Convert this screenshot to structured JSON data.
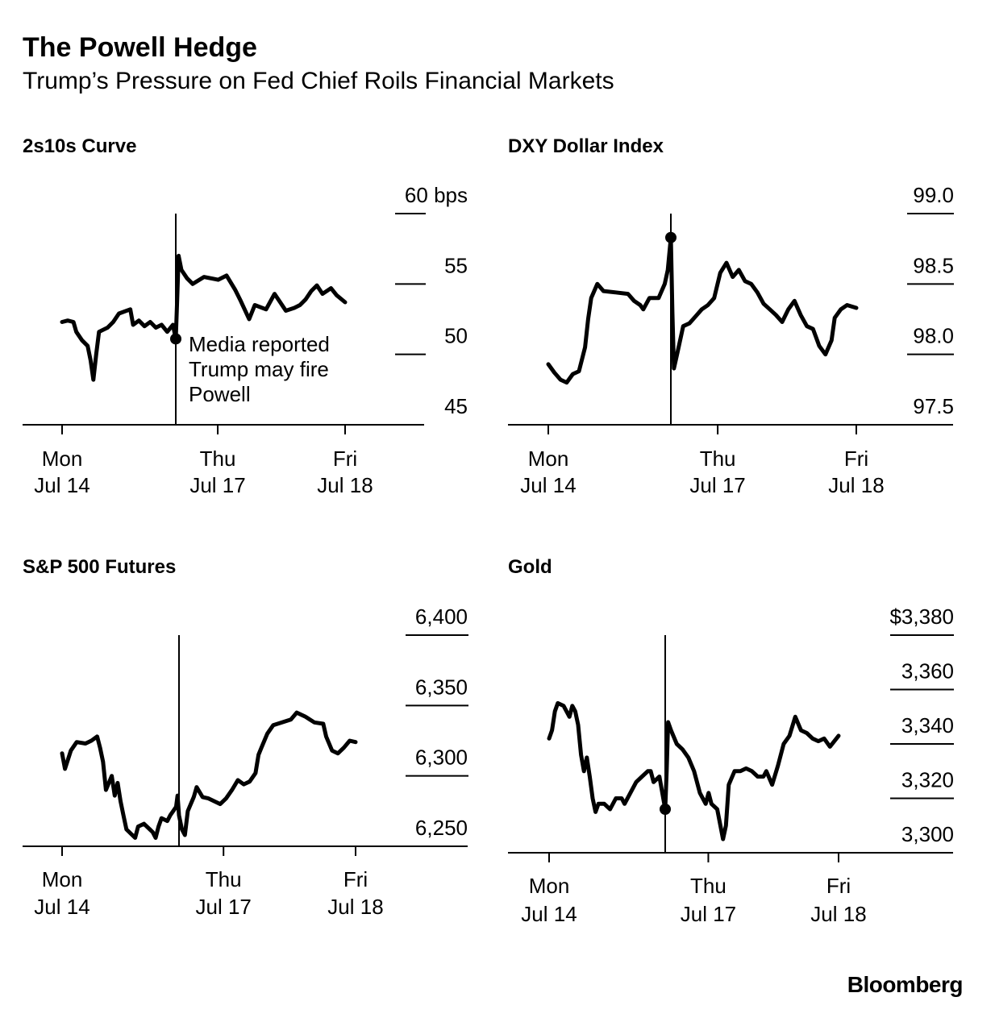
{
  "title": "The Powell Hedge",
  "subtitle": "Trump’s Pressure on Fed Chief Roils Financial Markets",
  "source": "Bloomberg",
  "chart_data": [
    {
      "type": "line",
      "title": "2s10s Curve",
      "x_ticks": [
        {
          "pos": 0,
          "label": [
            "Mon",
            "Jul 14"
          ]
        },
        {
          "pos": 0.55,
          "label": [
            "Thu",
            "Jul 17"
          ]
        },
        {
          "pos": 1,
          "label": [
            "Fri",
            "Jul 18"
          ]
        }
      ],
      "event_x": 0.4,
      "ylim": [
        45,
        60
      ],
      "y_ticks": [
        {
          "value": 60,
          "label": "60 bps"
        },
        {
          "value": 55,
          "label": "55"
        },
        {
          "value": 50,
          "label": "50"
        },
        {
          "value": 45,
          "label": "45"
        }
      ],
      "marker": {
        "x": 0.4,
        "y": 51.1
      },
      "annotation": [
        "Media reported",
        "Trump may fire",
        "Powell"
      ],
      "series": [
        {
          "values": [
            [
              0,
              52.3
            ],
            [
              0.02,
              52.4
            ],
            [
              0.04,
              52.3
            ],
            [
              0.05,
              51.6
            ],
            [
              0.07,
              51.0
            ],
            [
              0.09,
              50.6
            ],
            [
              0.1,
              49.6
            ],
            [
              0.11,
              48.2
            ],
            [
              0.12,
              50.0
            ],
            [
              0.13,
              51.6
            ],
            [
              0.16,
              51.9
            ],
            [
              0.18,
              52.3
            ],
            [
              0.2,
              52.9
            ],
            [
              0.24,
              53.2
            ],
            [
              0.25,
              52.1
            ],
            [
              0.27,
              52.4
            ],
            [
              0.29,
              52.0
            ],
            [
              0.31,
              52.3
            ],
            [
              0.33,
              51.9
            ],
            [
              0.35,
              52.1
            ],
            [
              0.37,
              51.6
            ],
            [
              0.39,
              52.1
            ],
            [
              0.4,
              51.1
            ],
            [
              0.405,
              54.0
            ],
            [
              0.41,
              57.0
            ],
            [
              0.42,
              56.0
            ],
            [
              0.44,
              55.4
            ],
            [
              0.46,
              55.0
            ],
            [
              0.5,
              55.5
            ],
            [
              0.55,
              55.3
            ],
            [
              0.58,
              55.6
            ],
            [
              0.61,
              54.6
            ],
            [
              0.63,
              53.8
            ],
            [
              0.66,
              52.5
            ],
            [
              0.68,
              53.5
            ],
            [
              0.72,
              53.2
            ],
            [
              0.75,
              54.3
            ],
            [
              0.77,
              53.7
            ],
            [
              0.79,
              53.1
            ],
            [
              0.82,
              53.3
            ],
            [
              0.84,
              53.5
            ],
            [
              0.86,
              53.9
            ],
            [
              0.88,
              54.5
            ],
            [
              0.9,
              54.9
            ],
            [
              0.92,
              54.3
            ],
            [
              0.95,
              54.7
            ],
            [
              0.97,
              54.2
            ],
            [
              1,
              53.7
            ]
          ]
        }
      ]
    },
    {
      "type": "line",
      "title": "DXY Dollar Index",
      "x_ticks": [
        {
          "pos": 0,
          "label": [
            "Mon",
            "Jul 14"
          ]
        },
        {
          "pos": 0.55,
          "label": [
            "Thu",
            "Jul 17"
          ]
        },
        {
          "pos": 1,
          "label": [
            "Fri",
            "Jul 18"
          ]
        }
      ],
      "event_x": 0.4,
      "ylim": [
        97.5,
        99.0
      ],
      "y_ticks": [
        {
          "value": 99.0,
          "label": "99.0"
        },
        {
          "value": 98.5,
          "label": "98.5"
        },
        {
          "value": 98.0,
          "label": "98.0"
        },
        {
          "value": 97.5,
          "label": "97.5"
        }
      ],
      "marker": {
        "x": 0.4,
        "y": 98.83
      },
      "series": [
        {
          "values": [
            [
              0,
              97.93
            ],
            [
              0.02,
              97.87
            ],
            [
              0.04,
              97.82
            ],
            [
              0.06,
              97.8
            ],
            [
              0.08,
              97.86
            ],
            [
              0.1,
              97.88
            ],
            [
              0.12,
              98.05
            ],
            [
              0.13,
              98.25
            ],
            [
              0.14,
              98.4
            ],
            [
              0.16,
              98.5
            ],
            [
              0.18,
              98.45
            ],
            [
              0.22,
              98.44
            ],
            [
              0.26,
              98.43
            ],
            [
              0.28,
              98.38
            ],
            [
              0.3,
              98.35
            ],
            [
              0.31,
              98.32
            ],
            [
              0.33,
              98.4
            ],
            [
              0.36,
              98.4
            ],
            [
              0.38,
              98.5
            ],
            [
              0.39,
              98.6
            ],
            [
              0.4,
              98.83
            ],
            [
              0.405,
              98.3
            ],
            [
              0.41,
              97.9
            ],
            [
              0.42,
              98.0
            ],
            [
              0.43,
              98.1
            ],
            [
              0.44,
              98.2
            ],
            [
              0.46,
              98.22
            ],
            [
              0.48,
              98.27
            ],
            [
              0.5,
              98.32
            ],
            [
              0.52,
              98.35
            ],
            [
              0.54,
              98.4
            ],
            [
              0.56,
              98.58
            ],
            [
              0.58,
              98.65
            ],
            [
              0.6,
              98.55
            ],
            [
              0.62,
              98.6
            ],
            [
              0.64,
              98.52
            ],
            [
              0.66,
              98.5
            ],
            [
              0.68,
              98.44
            ],
            [
              0.7,
              98.36
            ],
            [
              0.72,
              98.32
            ],
            [
              0.74,
              98.28
            ],
            [
              0.76,
              98.23
            ],
            [
              0.78,
              98.32
            ],
            [
              0.8,
              98.38
            ],
            [
              0.82,
              98.28
            ],
            [
              0.84,
              98.2
            ],
            [
              0.86,
              98.18
            ],
            [
              0.88,
              98.06
            ],
            [
              0.9,
              98.0
            ],
            [
              0.92,
              98.1
            ],
            [
              0.93,
              98.26
            ],
            [
              0.95,
              98.32
            ],
            [
              0.97,
              98.35
            ],
            [
              1,
              98.33
            ]
          ]
        }
      ]
    },
    {
      "type": "line",
      "title": "S&P 500 Futures",
      "x_ticks": [
        {
          "pos": 0,
          "label": [
            "Mon",
            "Jul 14"
          ]
        },
        {
          "pos": 0.55,
          "label": [
            "Thu",
            "Jul 17"
          ]
        },
        {
          "pos": 1,
          "label": [
            "Fri",
            "Jul 18"
          ]
        }
      ],
      "event_x": 0.4,
      "ylim": [
        6250,
        6400
      ],
      "y_ticks": [
        {
          "value": 6400,
          "label": "6,400"
        },
        {
          "value": 6350,
          "label": "6,350"
        },
        {
          "value": 6300,
          "label": "6,300"
        },
        {
          "value": 6250,
          "label": "6,250"
        }
      ],
      "series": [
        {
          "values": [
            [
              0,
              6316
            ],
            [
              0.01,
              6305
            ],
            [
              0.03,
              6318
            ],
            [
              0.05,
              6324
            ],
            [
              0.08,
              6323
            ],
            [
              0.1,
              6325
            ],
            [
              0.12,
              6328
            ],
            [
              0.13,
              6320
            ],
            [
              0.14,
              6310
            ],
            [
              0.15,
              6290
            ],
            [
              0.17,
              6300
            ],
            [
              0.18,
              6286
            ],
            [
              0.19,
              6295
            ],
            [
              0.2,
              6282
            ],
            [
              0.21,
              6272
            ],
            [
              0.22,
              6262
            ],
            [
              0.24,
              6258
            ],
            [
              0.25,
              6256
            ],
            [
              0.26,
              6264
            ],
            [
              0.28,
              6266
            ],
            [
              0.3,
              6262
            ],
            [
              0.31,
              6260
            ],
            [
              0.32,
              6256
            ],
            [
              0.33,
              6264
            ],
            [
              0.34,
              6270
            ],
            [
              0.36,
              6268
            ],
            [
              0.37,
              6272
            ],
            [
              0.38,
              6275
            ],
            [
              0.39,
              6278
            ],
            [
              0.395,
              6286
            ],
            [
              0.4,
              6272
            ],
            [
              0.41,
              6262
            ],
            [
              0.42,
              6258
            ],
            [
              0.43,
              6275
            ],
            [
              0.45,
              6285
            ],
            [
              0.46,
              6292
            ],
            [
              0.48,
              6285
            ],
            [
              0.5,
              6284
            ],
            [
              0.52,
              6282
            ],
            [
              0.54,
              6280
            ],
            [
              0.56,
              6284
            ],
            [
              0.58,
              6290
            ],
            [
              0.6,
              6297
            ],
            [
              0.62,
              6294
            ],
            [
              0.64,
              6296
            ],
            [
              0.66,
              6302
            ],
            [
              0.67,
              6315
            ],
            [
              0.68,
              6320
            ],
            [
              0.7,
              6330
            ],
            [
              0.72,
              6336
            ],
            [
              0.75,
              6338
            ],
            [
              0.78,
              6340
            ],
            [
              0.8,
              6345
            ],
            [
              0.83,
              6342
            ],
            [
              0.86,
              6338
            ],
            [
              0.89,
              6337
            ],
            [
              0.9,
              6328
            ],
            [
              0.92,
              6318
            ],
            [
              0.94,
              6316
            ],
            [
              0.96,
              6320
            ],
            [
              0.98,
              6325
            ],
            [
              1,
              6324
            ]
          ]
        }
      ]
    },
    {
      "type": "line",
      "title": "Gold",
      "x_ticks": [
        {
          "pos": 0,
          "label": [
            "Mon",
            "Jul 14"
          ]
        },
        {
          "pos": 0.55,
          "label": [
            "Thu",
            "Jul 17"
          ]
        },
        {
          "pos": 1,
          "label": [
            "Fri",
            "Jul 18"
          ]
        }
      ],
      "event_x": 0.4,
      "ylim": [
        3300,
        3380
      ],
      "y_ticks": [
        {
          "value": 3380,
          "label": "$3,380"
        },
        {
          "value": 3360,
          "label": "3,360"
        },
        {
          "value": 3340,
          "label": "3,340"
        },
        {
          "value": 3320,
          "label": "3,320"
        },
        {
          "value": 3300,
          "label": "3,300"
        }
      ],
      "marker": {
        "x": 0.4,
        "y": 3316
      },
      "series": [
        {
          "values": [
            [
              0,
              3342
            ],
            [
              0.01,
              3345
            ],
            [
              0.02,
              3352
            ],
            [
              0.03,
              3355
            ],
            [
              0.05,
              3354
            ],
            [
              0.07,
              3350
            ],
            [
              0.08,
              3354
            ],
            [
              0.09,
              3352
            ],
            [
              0.1,
              3347
            ],
            [
              0.11,
              3336
            ],
            [
              0.12,
              3330
            ],
            [
              0.13,
              3335
            ],
            [
              0.14,
              3328
            ],
            [
              0.15,
              3320
            ],
            [
              0.16,
              3315
            ],
            [
              0.17,
              3318
            ],
            [
              0.19,
              3318
            ],
            [
              0.21,
              3316
            ],
            [
              0.23,
              3320
            ],
            [
              0.25,
              3320
            ],
            [
              0.26,
              3318
            ],
            [
              0.28,
              3322
            ],
            [
              0.3,
              3326
            ],
            [
              0.32,
              3328
            ],
            [
              0.34,
              3330
            ],
            [
              0.35,
              3330
            ],
            [
              0.36,
              3326
            ],
            [
              0.38,
              3328
            ],
            [
              0.39,
              3322
            ],
            [
              0.4,
              3316
            ],
            [
              0.405,
              3330
            ],
            [
              0.41,
              3348
            ],
            [
              0.42,
              3345
            ],
            [
              0.44,
              3340
            ],
            [
              0.46,
              3338
            ],
            [
              0.48,
              3335
            ],
            [
              0.5,
              3330
            ],
            [
              0.52,
              3322
            ],
            [
              0.54,
              3318
            ],
            [
              0.55,
              3322
            ],
            [
              0.56,
              3318
            ],
            [
              0.58,
              3316
            ],
            [
              0.6,
              3305
            ],
            [
              0.61,
              3310
            ],
            [
              0.62,
              3325
            ],
            [
              0.64,
              3330
            ],
            [
              0.66,
              3330
            ],
            [
              0.68,
              3331
            ],
            [
              0.7,
              3330
            ],
            [
              0.72,
              3328
            ],
            [
              0.74,
              3328
            ],
            [
              0.75,
              3330
            ],
            [
              0.77,
              3325
            ],
            [
              0.79,
              3332
            ],
            [
              0.81,
              3340
            ],
            [
              0.83,
              3343
            ],
            [
              0.85,
              3350
            ],
            [
              0.87,
              3345
            ],
            [
              0.89,
              3344
            ],
            [
              0.91,
              3342
            ],
            [
              0.93,
              3341
            ],
            [
              0.95,
              3342
            ],
            [
              0.97,
              3339
            ],
            [
              1,
              3343
            ]
          ]
        }
      ]
    }
  ]
}
